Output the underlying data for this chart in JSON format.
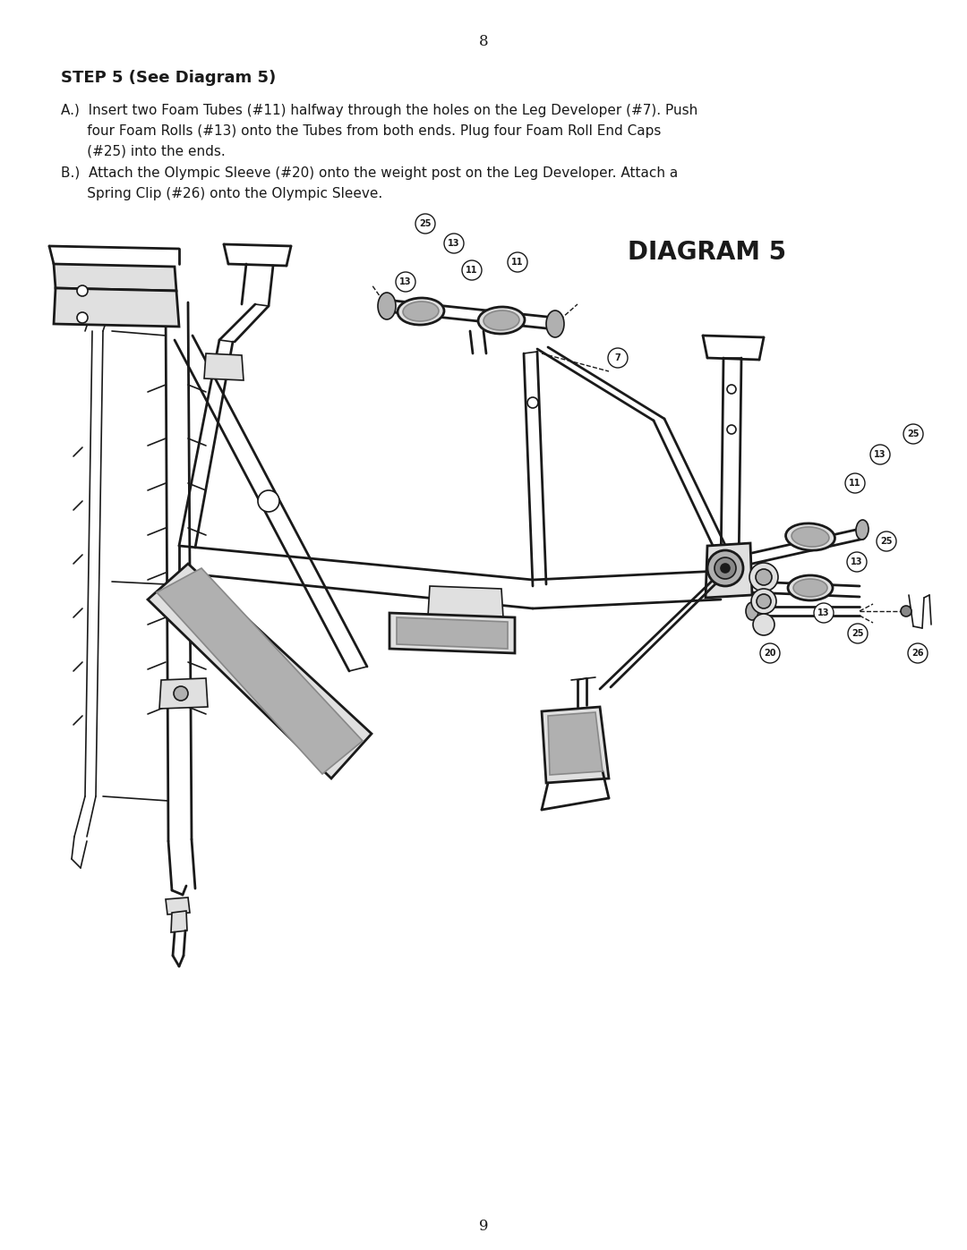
{
  "page_number_top": "8",
  "page_number_bottom": "9",
  "step_title": "STEP 5 (See Diagram 5)",
  "line_a1": "A.)  Insert two Foam Tubes (#11) halfway through the holes on the Leg Developer (#7). Push",
  "line_a2": "      four Foam Rolls (#13) onto the Tubes from both ends. Plug four Foam Roll End Caps",
  "line_a3": "      (#25) into the ends.",
  "line_b1": "B.)  Attach the Olympic Sleeve (#20) onto the weight post on the Leg Developer. Attach a",
  "line_b2": "      Spring Clip (#26) onto the Olympic Sleeve.",
  "diagram_title": "DIAGRAM 5",
  "background_color": "#ffffff",
  "text_color": "#000000",
  "title_fontsize": 13,
  "body_fontsize": 11,
  "diagram_title_fontsize": 20,
  "page_num_fontsize": 12,
  "dark": "#1a1a1a",
  "gray_light": "#e0e0e0",
  "gray_mid": "#b0b0b0",
  "gray_dark": "#888888"
}
